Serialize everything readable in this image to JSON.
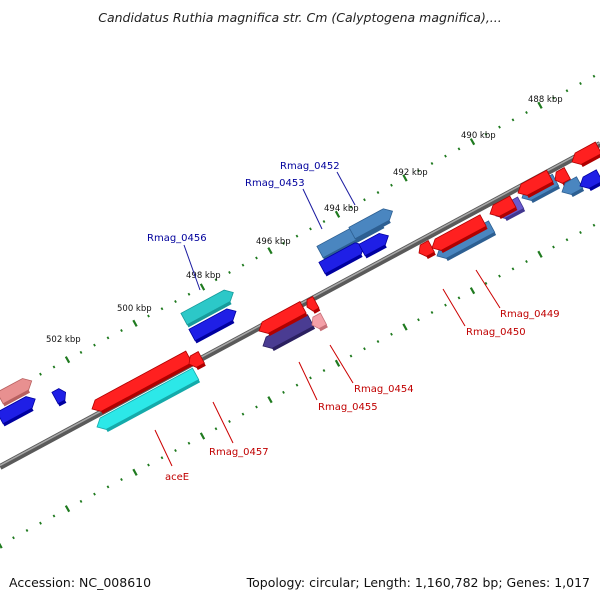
{
  "title": "Candidatus Ruthia magnifica str. Cm (Calyptogena magnifica),...",
  "footer": {
    "accession": "Accession: NC_008610",
    "topology": "Topology: circular; Length: 1,160,782 bp; Genes: 1,017"
  },
  "colors": {
    "backbone": "#777777",
    "tick": "#1f7a1f",
    "forward_label": "#00009c",
    "reverse_label": "#c00000"
  },
  "ticks": [
    "488 kbp",
    "490 kbp",
    "492 kbp",
    "494 kbp",
    "496 kbp",
    "498 kbp",
    "500 kbp",
    "502 kbp"
  ],
  "gene_labels": [
    {
      "text": "Rmag_0452",
      "strand": "forward"
    },
    {
      "text": "Rmag_0453",
      "strand": "forward"
    },
    {
      "text": "Rmag_0456",
      "strand": "forward"
    },
    {
      "text": "Rmag_0449",
      "strand": "reverse"
    },
    {
      "text": "Rmag_0450",
      "strand": "reverse"
    },
    {
      "text": "Rmag_0454",
      "strand": "reverse"
    },
    {
      "text": "Rmag_0455",
      "strand": "reverse"
    },
    {
      "text": "Rmag_0457",
      "strand": "reverse"
    },
    {
      "text": "aceE",
      "strand": "reverse"
    }
  ]
}
